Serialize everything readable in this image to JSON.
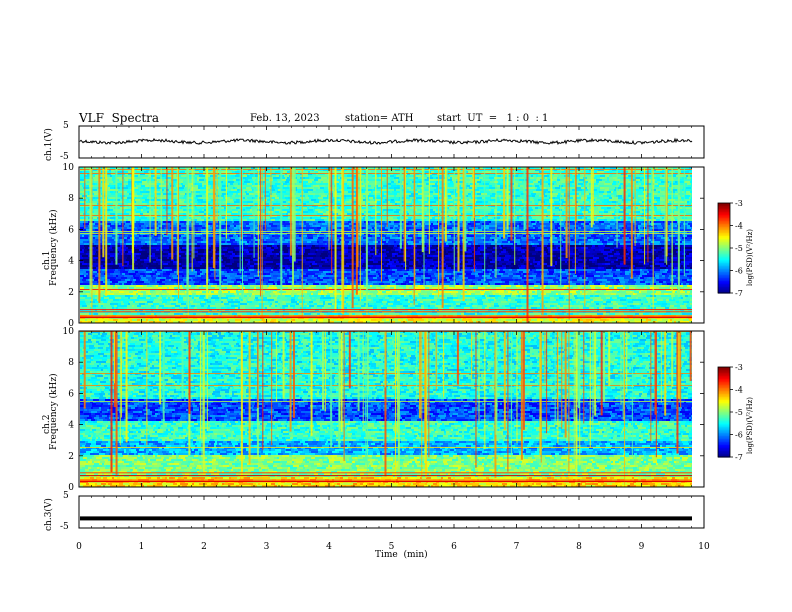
{
  "header": {
    "title": "VLF  Spectra",
    "date": "Feb. 13, 2023",
    "station": "station= ATH",
    "start": "start  UT  =   1 : 0  : 1"
  },
  "chart_data": [
    {
      "type": "line",
      "ylabel": "ch.1(V)",
      "ylim": [
        -5,
        5
      ],
      "yticks": [
        "5",
        "-5"
      ],
      "xlim": [
        0,
        10
      ],
      "description_level": 0.3
    },
    {
      "type": "heatmap",
      "ylabel_top": "ch.1",
      "ylabel": "Frequency  (kHz)",
      "ylim": [
        0,
        10
      ],
      "yticks": [
        "0",
        "2",
        "4",
        "6",
        "8",
        "10"
      ],
      "colorbar": {
        "label": "log(PSD)(V²/Hz)",
        "ticks": [
          "-3",
          "-4",
          "-5",
          "-6",
          "-7"
        ],
        "range": [
          -7,
          -3
        ]
      },
      "bands": [
        {
          "from": 0,
          "to": 0.5,
          "level": -4.6
        },
        {
          "from": 0.5,
          "to": 1.8,
          "level": -5.3
        },
        {
          "from": 1.8,
          "to": 2.5,
          "level": -4.9
        },
        {
          "from": 2.5,
          "to": 3.4,
          "level": -6.2
        },
        {
          "from": 3.4,
          "to": 5.0,
          "level": -6.8
        },
        {
          "from": 5.0,
          "to": 6.6,
          "level": -6.1
        },
        {
          "from": 6.6,
          "to": 10,
          "level": -5.3
        }
      ]
    },
    {
      "type": "heatmap",
      "ylabel_top": "ch.2",
      "ylabel": "Frequency  (kHz)",
      "ylim": [
        0,
        10
      ],
      "yticks": [
        "0",
        "2",
        "4",
        "6",
        "8",
        "10"
      ],
      "colorbar": {
        "label": "log(PSD)(V²/Hz)",
        "ticks": [
          "-3",
          "-4",
          "-5",
          "-6",
          "-7"
        ],
        "range": [
          -7,
          -3
        ]
      },
      "bands": [
        {
          "from": 0,
          "to": 0.6,
          "level": -4.4
        },
        {
          "from": 0.6,
          "to": 2.0,
          "level": -5.0
        },
        {
          "from": 2.0,
          "to": 3.0,
          "level": -5.8
        },
        {
          "from": 3.0,
          "to": 4.2,
          "level": -5.3
        },
        {
          "from": 4.2,
          "to": 5.6,
          "level": -6.2
        },
        {
          "from": 5.6,
          "to": 10,
          "level": -5.4
        }
      ]
    },
    {
      "type": "line",
      "ylabel": "ch.3(V)",
      "ylim": [
        -5,
        5
      ],
      "yticks": [
        "5",
        "-5"
      ],
      "xlim": [
        0,
        10
      ],
      "xlabel": "Time  (min)",
      "xticks": [
        "0",
        "1",
        "2",
        "3",
        "4",
        "5",
        "6",
        "7",
        "8",
        "9",
        "10"
      ],
      "level": -2
    }
  ]
}
